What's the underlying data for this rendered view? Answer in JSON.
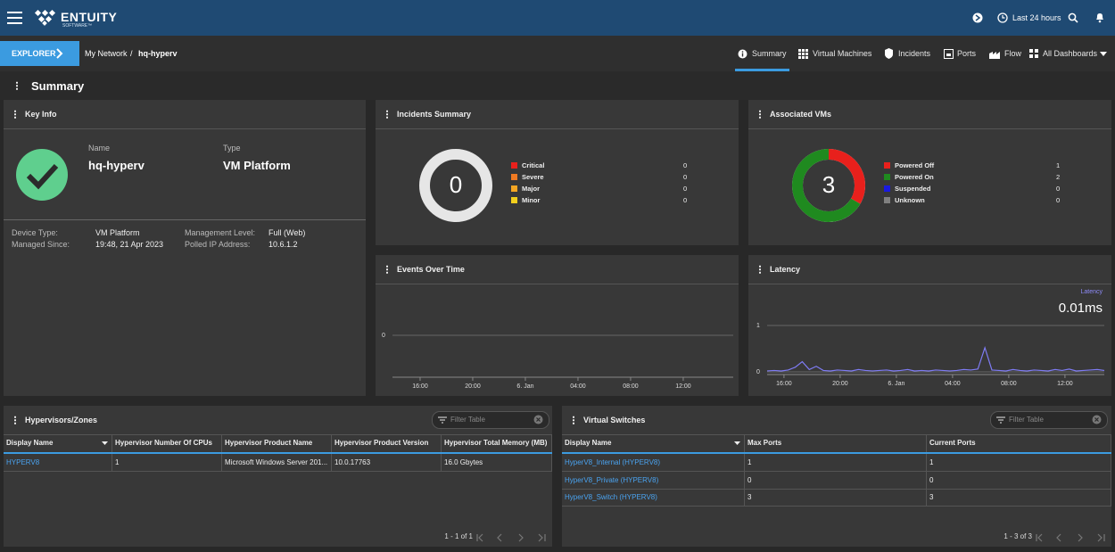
{
  "header": {
    "brand": "ENTUITY",
    "brand_sub": "SOFTWARE™",
    "time_range": "Last 24 hours"
  },
  "nav": {
    "explorer": "EXPLORER",
    "breadcrumb": [
      "My Network",
      "/",
      "hq-hyperv"
    ],
    "tabs": [
      "Summary",
      "Virtual Machines",
      "Incidents",
      "Ports",
      "Flow",
      "All Dashboards"
    ]
  },
  "page_title": "Summary",
  "key_info": {
    "title": "Key Info",
    "name_label": "Name",
    "name": "hq-hyperv",
    "type_label": "Type",
    "type": "VM Platform",
    "details": [
      [
        "Device Type:",
        "VM Platform"
      ],
      [
        "Managed Since:",
        "19:48, 21 Apr 2023"
      ],
      [
        "Management Level:",
        "Full (Web)"
      ],
      [
        "Polled IP Address:",
        "10.6.1.2"
      ]
    ]
  },
  "incidents_summary": {
    "title": "Incidents Summary",
    "total": 0,
    "series": [
      {
        "name": "Critical",
        "color": "#e8201c",
        "value": 0
      },
      {
        "name": "Severe",
        "color": "#f07a22",
        "value": 0
      },
      {
        "name": "Major",
        "color": "#f5a623",
        "value": 0
      },
      {
        "name": "Minor",
        "color": "#f2cf1d",
        "value": 0
      }
    ]
  },
  "associated_vms": {
    "title": "Associated VMs",
    "total": 3,
    "series": [
      {
        "name": "Powered Off",
        "color": "#e8201c",
        "value": 1
      },
      {
        "name": "Powered On",
        "color": "#1f8a1f",
        "value": 2
      },
      {
        "name": "Suspended",
        "color": "#1a1ae0",
        "value": 0
      },
      {
        "name": "Unknown",
        "color": "#808080",
        "value": 0
      }
    ]
  },
  "events_over_time": {
    "title": "Events Over Time",
    "ylim": [
      -1,
      1
    ],
    "yticks": [
      0
    ],
    "xlim": [
      0,
      25.9
    ],
    "xticks": [
      {
        "value": 2.1,
        "label": "16:00"
      },
      {
        "value": 6.1,
        "label": "20:00"
      },
      {
        "value": 10.1,
        "label": "6. Jan"
      },
      {
        "value": 14.1,
        "label": "04:00"
      },
      {
        "value": 18.1,
        "label": "08:00"
      },
      {
        "value": 22.1,
        "label": "12:00"
      }
    ]
  },
  "latency": {
    "title": "Latency",
    "legend": "Latency",
    "current": "0.01ms",
    "color": "#7f7cf5",
    "ylim": [
      0,
      1.5
    ],
    "yticks": [
      0,
      1
    ],
    "xlim": [
      0,
      24
    ],
    "xticks": [
      {
        "value": 1.2,
        "label": "16:00"
      },
      {
        "value": 5.2,
        "label": "20:00"
      },
      {
        "value": 9.2,
        "label": "6. Jan"
      },
      {
        "value": 13.2,
        "label": "04:00"
      },
      {
        "value": 17.2,
        "label": "08:00"
      },
      {
        "value": 21.2,
        "label": "12:00"
      }
    ],
    "x": [
      0,
      0.5,
      1,
      1.5,
      2,
      2.5,
      3,
      3.5,
      4,
      4.5,
      5,
      5.5,
      6,
      6.5,
      7,
      7.5,
      8,
      8.5,
      9,
      9.5,
      10,
      10.5,
      11,
      11.5,
      12,
      12.5,
      13,
      13.5,
      14,
      14.5,
      15,
      15.5,
      16,
      16.5,
      17,
      17.5,
      18,
      18.5,
      19,
      19.5,
      20,
      20.5,
      21,
      21.5,
      22,
      22.5,
      23,
      23.5,
      24
    ],
    "values": [
      0.02,
      0.03,
      0.02,
      0.04,
      0.1,
      0.22,
      0.05,
      0.12,
      0.03,
      0.02,
      0.04,
      0.03,
      0.02,
      0.05,
      0.03,
      0.02,
      0.03,
      0.04,
      0.02,
      0.03,
      0.05,
      0.02,
      0.03,
      0.02,
      0.04,
      0.03,
      0.02,
      0.03,
      0.05,
      0.04,
      0.06,
      0.52,
      0.04,
      0.03,
      0.02,
      0.05,
      0.03,
      0.02,
      0.04,
      0.03,
      0.02,
      0.05,
      0.03,
      0.06,
      0.02,
      0.03,
      0.04,
      0.05,
      0.03
    ]
  },
  "hypervisors": {
    "title": "Hypervisors/Zones",
    "filter_placeholder": "Filter Table",
    "columns": [
      "Display Name",
      "Hypervisor Number Of CPUs",
      "Hypervisor Product Name",
      "Hypervisor Product Version",
      "Hypervisor Total Memory (MB)"
    ],
    "rows": [
      [
        "HYPERV8",
        "1",
        "Microsoft Windows Server 201...",
        "10.0.17763",
        "16.0 Gbytes"
      ]
    ],
    "pagination": "1 - 1 of 1"
  },
  "virtual_switches": {
    "title": "Virtual Switches",
    "filter_placeholder": "Filter Table",
    "columns": [
      "Display Name",
      "Max Ports",
      "Current Ports"
    ],
    "rows": [
      [
        "HyperV8_Internal (HYPERV8)",
        "1",
        "1"
      ],
      [
        "HyperV8_Private (HYPERV8)",
        "0",
        "0"
      ],
      [
        "HyperV8_Switch (HYPERV8)",
        "3",
        "3"
      ]
    ],
    "pagination": "1 - 3 of 3"
  }
}
